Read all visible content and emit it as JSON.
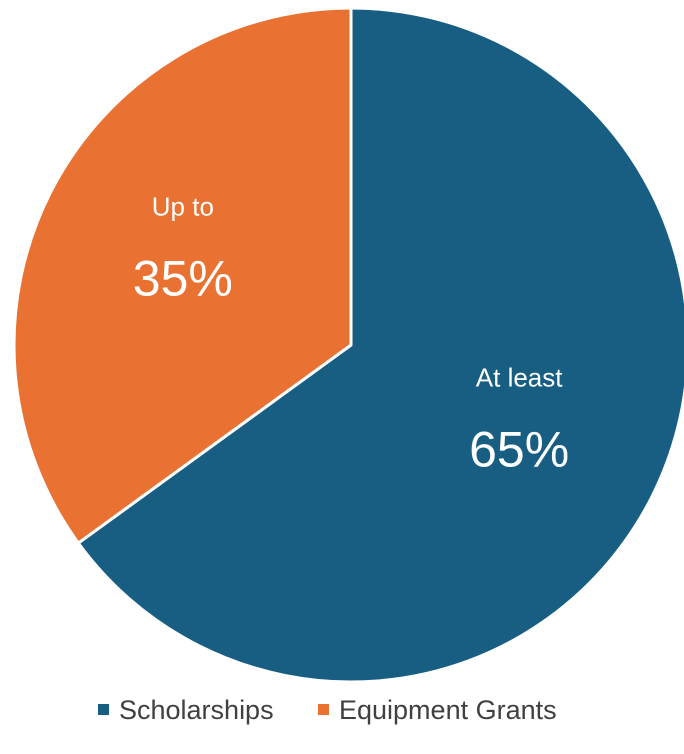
{
  "chart_data": {
    "type": "pie",
    "title": "",
    "start_angle_deg": 0,
    "direction": "clockwise",
    "legend_position": "bottom",
    "slices": [
      {
        "name": "Scholarships",
        "value": 65,
        "label_prefix": "At least",
        "label_value": "65%",
        "color": "#175E82"
      },
      {
        "name": "Equipment Grants",
        "value": 35,
        "label_prefix": "Up to",
        "label_value": "35%",
        "color": "#E97132"
      }
    ],
    "slice_border_color": "#ffffff"
  }
}
